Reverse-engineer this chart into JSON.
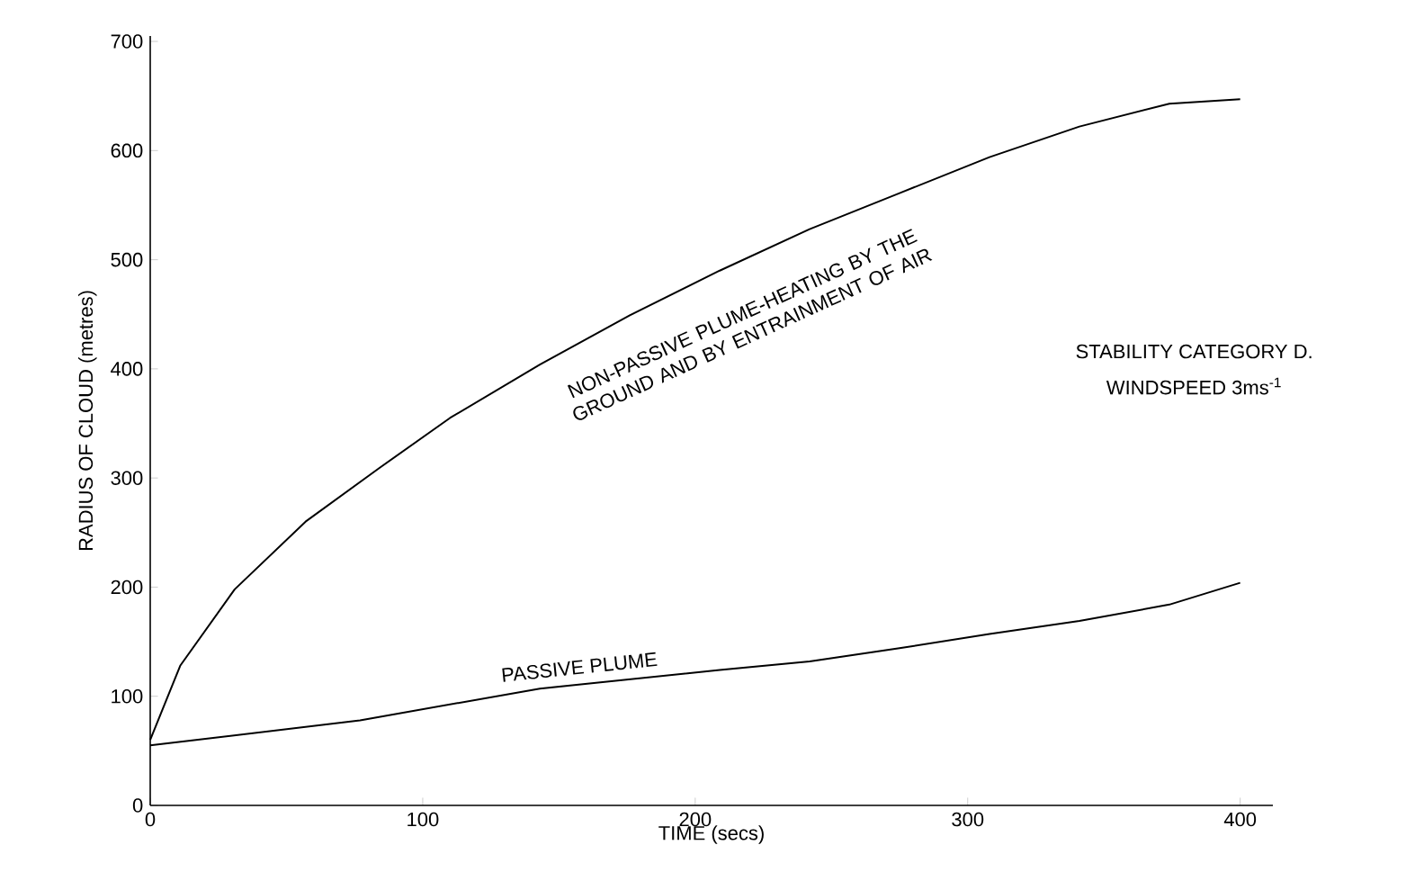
{
  "chart_data": {
    "type": "line",
    "xlabel": "TIME (secs)",
    "ylabel": "RADIUS OF CLOUD (metres)",
    "x": [
      0,
      11,
      31,
      57,
      84,
      110,
      143,
      176,
      209,
      242,
      275,
      308,
      341,
      374,
      400
    ],
    "series": [
      {
        "name": "NON-PASSIVE PLUME-HEATING BY THE GROUND AND BY ENTRAINMENT OF AIR",
        "color": "#000000",
        "values": [
          60,
          128,
          198,
          260,
          309,
          355,
          404,
          449,
          490,
          528,
          561,
          594,
          622,
          643,
          647
        ]
      },
      {
        "name": "PASSIVE PLUME",
        "color": "#000000",
        "x": [
          0,
          77,
          143,
          209,
          242,
          275,
          308,
          341,
          374,
          400
        ],
        "values": [
          55,
          78,
          107,
          124,
          132,
          144,
          157,
          169,
          184,
          204
        ]
      }
    ],
    "xlim": [
      0,
      412
    ],
    "ylim": [
      0,
      705
    ],
    "xticks": [
      0,
      100,
      200,
      300,
      400
    ],
    "yticks": [
      0,
      100,
      200,
      300,
      400,
      500,
      600,
      700
    ],
    "annotations": [
      "STABILITY  CATEGORY D.",
      "WINDSPEED  3ms$^{-1}$"
    ],
    "grid": false,
    "marker": "none",
    "line_style": "solid"
  }
}
